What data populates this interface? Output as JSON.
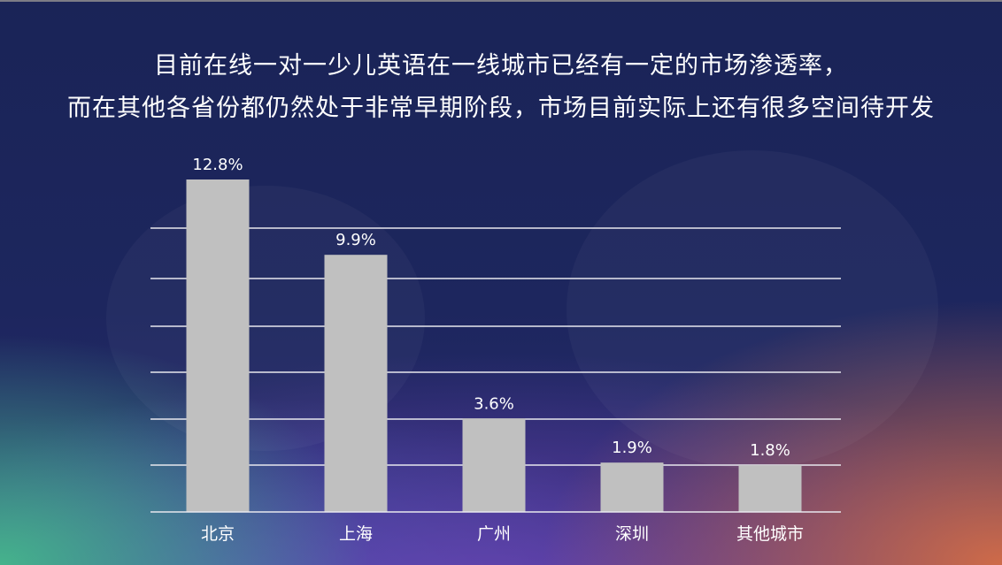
{
  "header": {
    "line1": "目前在线一对一少儿英语在一线城市已经有一定的市场渗透率，",
    "line2": "而在其他各省份都仍然处于非常早期阶段，市场目前实际上还有很多空间待开发"
  },
  "colors": {
    "bar": "#c0c0c0",
    "gridline": "#e8e8ee",
    "text": "#ffffff"
  },
  "chart_data": {
    "type": "bar",
    "title": "",
    "xlabel": "",
    "ylabel": "",
    "categories": [
      "北京",
      "上海",
      "广州",
      "深圳",
      "其他城市"
    ],
    "values": [
      12.8,
      9.9,
      3.6,
      1.9,
      1.8
    ],
    "value_labels": [
      "12.8%",
      "9.9%",
      "3.6%",
      "1.9%",
      "1.8%"
    ],
    "ylim": [
      0,
      14
    ],
    "grid": true,
    "legend": "none"
  }
}
